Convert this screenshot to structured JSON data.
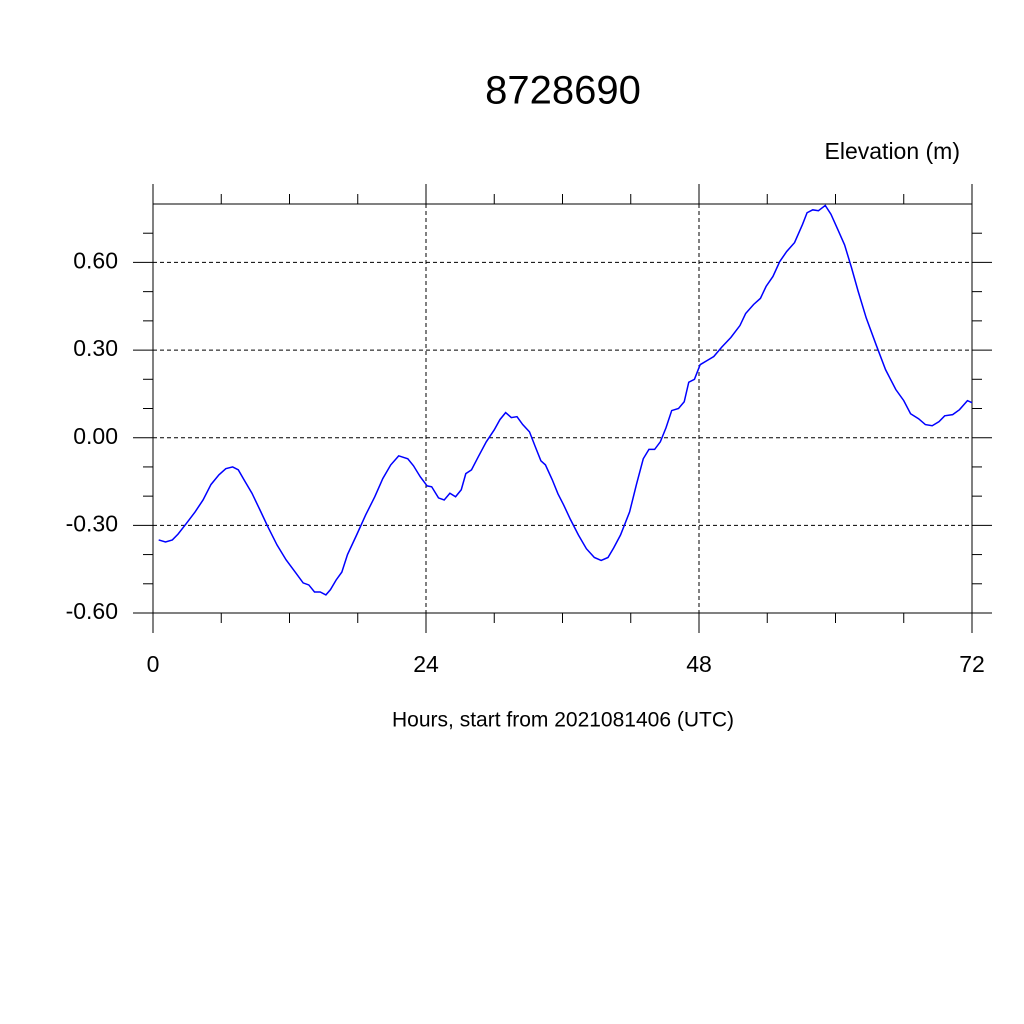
{
  "chart_data": {
    "type": "line",
    "title": "8728690",
    "y_label": "Elevation (m)",
    "x_label": "Hours, start from 2021081406 (UTC)",
    "xlim": [
      0,
      72
    ],
    "xticks": [
      0,
      24,
      48,
      72
    ],
    "x_minor_ticks": [
      6,
      12,
      18,
      30,
      36,
      42,
      54,
      60,
      66
    ],
    "ylim": [
      -0.6,
      0.8
    ],
    "yticks": [
      {
        "value": -0.6,
        "label": "-0.60"
      },
      {
        "value": -0.3,
        "label": "-0.30"
      },
      {
        "value": 0,
        "label": "0.00"
      },
      {
        "value": 0.3,
        "label": "0.30"
      },
      {
        "value": 0.6,
        "label": "0.60"
      }
    ],
    "y_minor_ticks": [
      -0.5,
      -0.4,
      -0.2,
      -0.1,
      0.1,
      0.2,
      0.4,
      0.5,
      0.7
    ],
    "grid": true,
    "x": [
      0.5,
      1.1,
      1.7,
      2.2,
      2.9,
      3.7,
      4.4,
      5.1,
      5.8,
      6.4,
      7.0,
      7.5,
      8.0,
      8.7,
      9.4,
      10.1,
      10.9,
      11.7,
      12.5,
      13.2,
      13.7,
      14.2,
      14.7,
      15.2,
      15.6,
      16.1,
      16.6,
      17.1,
      17.9,
      18.7,
      19.5,
      20.2,
      20.9,
      21.6,
      22.4,
      22.9,
      23.5,
      24.1,
      24.5,
      25.1,
      25.6,
      26.1,
      26.6,
      27.1,
      27.5,
      28.0,
      28.6,
      29.3,
      30.0,
      30.5,
      31.0,
      31.5,
      32.0,
      32.5,
      33.1,
      33.6,
      34.1,
      34.5,
      35.1,
      35.6,
      36.1,
      36.7,
      37.4,
      38.1,
      38.8,
      39.4,
      40.0,
      40.5,
      41.1,
      41.9,
      42.5,
      43.1,
      43.6,
      44.1,
      44.6,
      45.1,
      45.6,
      46.2,
      46.7,
      47.1,
      47.6,
      48.1,
      48.7,
      49.3,
      50.0,
      50.8,
      51.6,
      52.1,
      52.8,
      53.4,
      53.9,
      54.5,
      55.1,
      55.7,
      56.4,
      57.1,
      57.5,
      58.0,
      58.5,
      59.1,
      59.6,
      60.2,
      60.8,
      61.4,
      62.0,
      62.7,
      63.6,
      64.4,
      65.3,
      66.0,
      66.6,
      67.3,
      67.9,
      68.5,
      69.1,
      69.6,
      70.3,
      70.9,
      71.6,
      72.0
    ],
    "series": [
      {
        "name": "Elevation",
        "color": "#0000ff",
        "values": [
          -0.35,
          -0.357,
          -0.35,
          -0.33,
          -0.295,
          -0.254,
          -0.213,
          -0.16,
          -0.127,
          -0.106,
          -0.1,
          -0.11,
          -0.144,
          -0.19,
          -0.247,
          -0.305,
          -0.367,
          -0.418,
          -0.46,
          -0.497,
          -0.504,
          -0.528,
          -0.528,
          -0.538,
          -0.52,
          -0.487,
          -0.46,
          -0.4,
          -0.333,
          -0.264,
          -0.202,
          -0.14,
          -0.093,
          -0.062,
          -0.072,
          -0.096,
          -0.134,
          -0.165,
          -0.168,
          -0.206,
          -0.213,
          -0.19,
          -0.202,
          -0.178,
          -0.123,
          -0.11,
          -0.065,
          -0.014,
          0.027,
          0.062,
          0.086,
          0.069,
          0.072,
          0.045,
          0.02,
          -0.03,
          -0.079,
          -0.093,
          -0.144,
          -0.192,
          -0.23,
          -0.28,
          -0.333,
          -0.38,
          -0.41,
          -0.42,
          -0.41,
          -0.377,
          -0.333,
          -0.254,
          -0.16,
          -0.072,
          -0.04,
          -0.04,
          -0.014,
          0.034,
          0.093,
          0.1,
          0.123,
          0.19,
          0.2,
          0.25,
          0.264,
          0.278,
          0.31,
          0.343,
          0.384,
          0.425,
          0.456,
          0.477,
          0.518,
          0.552,
          0.603,
          0.637,
          0.668,
          0.73,
          0.77,
          0.78,
          0.777,
          0.795,
          0.765,
          0.713,
          0.66,
          0.583,
          0.5,
          0.41,
          0.315,
          0.233,
          0.165,
          0.127,
          0.082,
          0.065,
          0.045,
          0.041,
          0.055,
          0.075,
          0.079,
          0.096,
          0.127,
          0.12
        ]
      }
    ]
  }
}
